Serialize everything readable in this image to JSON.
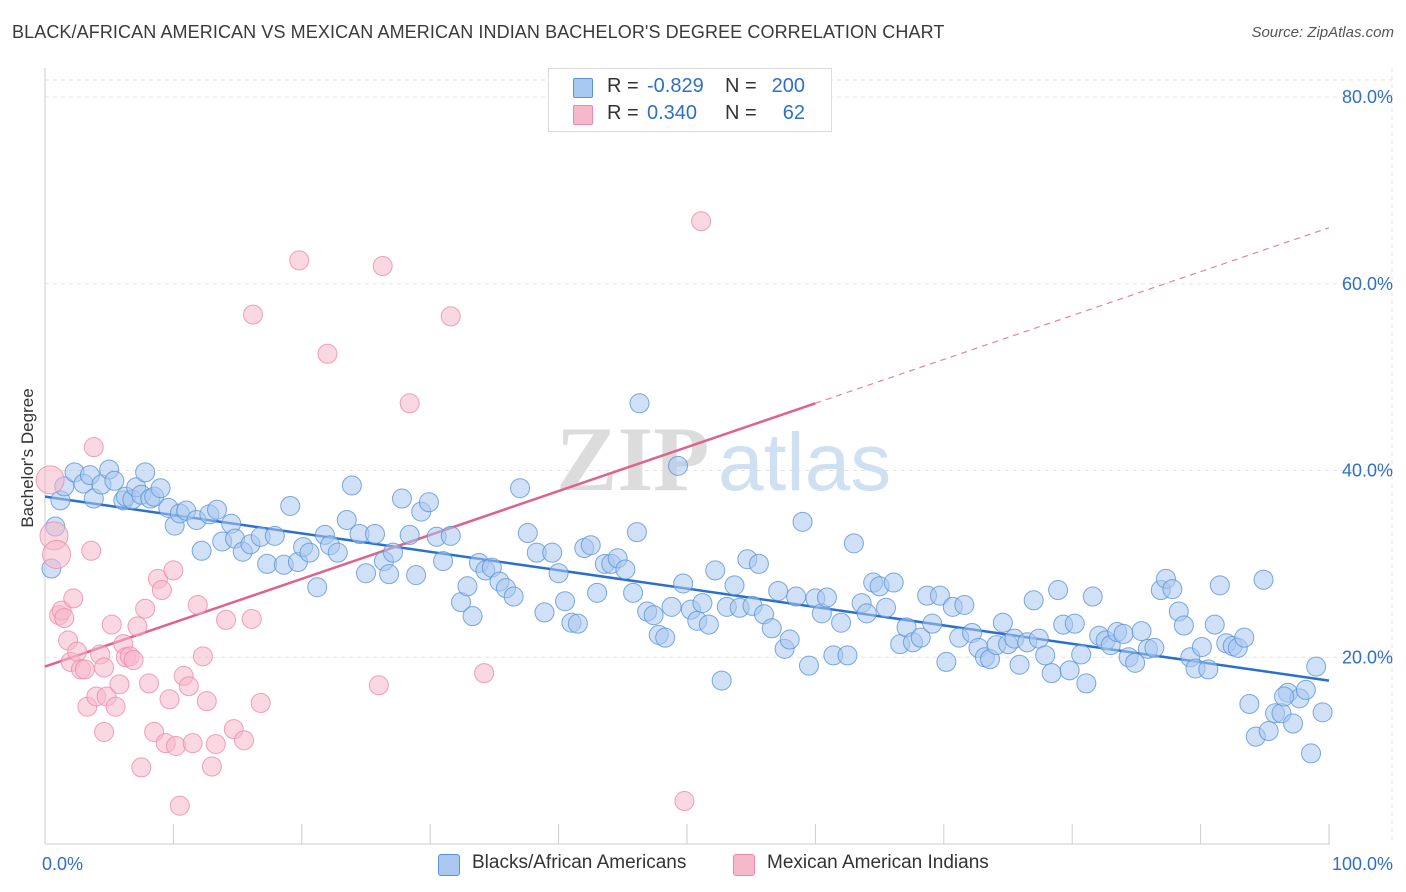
{
  "header": {
    "title": "BLACK/AFRICAN AMERICAN VS MEXICAN AMERICAN INDIAN BACHELOR'S DEGREE CORRELATION CHART",
    "source": "Source: ZipAtlas.com"
  },
  "legend_top": {
    "rows": [
      {
        "r_label": "R =",
        "r_value": "-0.829",
        "n_label": "N =",
        "n_value": "200",
        "color": "#a9c8f0"
      },
      {
        "r_label": "R =",
        "r_value": "0.340",
        "n_label": "N =",
        "n_value": "62",
        "color": "#f6b8cb"
      }
    ]
  },
  "legend_bottom": {
    "items": [
      {
        "label": "Blacks/African Americans",
        "color": "#a9c8f0"
      },
      {
        "label": "Mexican American Indians",
        "color": "#f6b8cb"
      }
    ]
  },
  "chart_data": {
    "type": "scatter",
    "title": "BLACK/AFRICAN AMERICAN VS MEXICAN AMERICAN INDIAN BACHELOR'S DEGREE CORRELATION CHART",
    "xlabel": "",
    "ylabel": "Bachelor's Degree",
    "xlim": [
      0,
      100
    ],
    "ylim": [
      0,
      85
    ],
    "x_tick_labels": [
      "0.0%",
      "100.0%"
    ],
    "y_ticks": [
      20,
      40,
      60,
      80
    ],
    "y_tick_labels": [
      "20.0%",
      "40.0%",
      "60.0%",
      "80.0%"
    ],
    "grid": true,
    "watermark": "ZIPatlas",
    "series": [
      {
        "name": "Blacks/African Americans",
        "color": "#5b93d8",
        "fill": "#a9c8f0",
        "trend": {
          "x0": 0,
          "y0": 37.2,
          "x1": 100,
          "y1": 17.5,
          "color": "#2a6fd0",
          "dashed_from": null
        },
        "points": [
          [
            0.5,
            29.5
          ],
          [
            0.8,
            34.0
          ],
          [
            1.2,
            36.8
          ],
          [
            1.5,
            38.3
          ],
          [
            2.3,
            39.8
          ],
          [
            3.0,
            38.6
          ],
          [
            3.5,
            39.5
          ],
          [
            3.8,
            37.0
          ],
          [
            4.4,
            38.5
          ],
          [
            5.0,
            40.1
          ],
          [
            5.4,
            38.9
          ],
          [
            6.1,
            36.8
          ],
          [
            6.3,
            37.2
          ],
          [
            6.8,
            36.9
          ],
          [
            7.1,
            38.2
          ],
          [
            7.5,
            37.4
          ],
          [
            7.8,
            39.8
          ],
          [
            8.2,
            37.0
          ],
          [
            8.5,
            37.2
          ],
          [
            9.0,
            38.1
          ],
          [
            9.6,
            36.0
          ],
          [
            10.1,
            34.1
          ],
          [
            10.5,
            35.4
          ],
          [
            11.0,
            35.7
          ],
          [
            11.8,
            34.7
          ],
          [
            12.2,
            31.4
          ],
          [
            12.8,
            35.3
          ],
          [
            13.4,
            35.8
          ],
          [
            13.8,
            32.4
          ],
          [
            14.5,
            34.3
          ],
          [
            14.8,
            32.7
          ],
          [
            15.4,
            31.3
          ],
          [
            16.0,
            32.1
          ],
          [
            16.8,
            32.9
          ],
          [
            17.3,
            30.0
          ],
          [
            17.9,
            33.0
          ],
          [
            18.6,
            29.9
          ],
          [
            19.1,
            36.2
          ],
          [
            19.7,
            30.2
          ],
          [
            20.1,
            31.8
          ],
          [
            20.6,
            31.2
          ],
          [
            21.2,
            27.5
          ],
          [
            21.8,
            33.1
          ],
          [
            22.2,
            32.0
          ],
          [
            22.8,
            31.2
          ],
          [
            23.5,
            34.7
          ],
          [
            23.9,
            38.4
          ],
          [
            24.5,
            33.2
          ],
          [
            25.0,
            29.0
          ],
          [
            25.7,
            33.2
          ],
          [
            26.4,
            30.3
          ],
          [
            26.8,
            28.9
          ],
          [
            27.1,
            31.2
          ],
          [
            27.8,
            37.0
          ],
          [
            28.4,
            33.1
          ],
          [
            28.9,
            28.8
          ],
          [
            29.3,
            35.6
          ],
          [
            29.9,
            36.6
          ],
          [
            30.5,
            32.9
          ],
          [
            31.0,
            30.3
          ],
          [
            31.6,
            33.0
          ],
          [
            32.4,
            25.9
          ],
          [
            32.9,
            27.6
          ],
          [
            33.3,
            24.4
          ],
          [
            33.8,
            30.1
          ],
          [
            34.3,
            29.3
          ],
          [
            34.8,
            29.6
          ],
          [
            35.4,
            28.1
          ],
          [
            35.9,
            27.4
          ],
          [
            36.5,
            26.5
          ],
          [
            37.0,
            38.1
          ],
          [
            37.6,
            33.3
          ],
          [
            38.3,
            31.2
          ],
          [
            38.9,
            24.8
          ],
          [
            39.5,
            31.2
          ],
          [
            40.0,
            29.0
          ],
          [
            40.5,
            26.0
          ],
          [
            41.0,
            23.7
          ],
          [
            41.5,
            23.6
          ],
          [
            42.0,
            31.7
          ],
          [
            42.5,
            32.0
          ],
          [
            43.0,
            26.9
          ],
          [
            43.6,
            30.0
          ],
          [
            44.1,
            30.0
          ],
          [
            44.6,
            30.6
          ],
          [
            45.2,
            29.4
          ],
          [
            45.8,
            26.9
          ],
          [
            46.1,
            33.4
          ],
          [
            46.3,
            47.2
          ],
          [
            46.9,
            24.9
          ],
          [
            47.4,
            24.5
          ],
          [
            47.8,
            22.4
          ],
          [
            48.3,
            22.1
          ],
          [
            48.8,
            25.4
          ],
          [
            49.3,
            40.5
          ],
          [
            49.7,
            27.9
          ],
          [
            50.3,
            25.1
          ],
          [
            50.8,
            23.9
          ],
          [
            51.2,
            25.8
          ],
          [
            51.7,
            23.5
          ],
          [
            52.2,
            29.3
          ],
          [
            52.7,
            17.5
          ],
          [
            53.1,
            25.4
          ],
          [
            53.7,
            27.7
          ],
          [
            54.1,
            25.3
          ],
          [
            54.7,
            30.5
          ],
          [
            55.1,
            25.5
          ],
          [
            55.6,
            30.0
          ],
          [
            56.0,
            24.6
          ],
          [
            56.6,
            23.1
          ],
          [
            57.1,
            27.1
          ],
          [
            57.6,
            20.9
          ],
          [
            58.0,
            21.9
          ],
          [
            58.5,
            26.5
          ],
          [
            59.0,
            34.5
          ],
          [
            59.5,
            19.1
          ],
          [
            60.0,
            26.3
          ],
          [
            60.5,
            24.7
          ],
          [
            60.9,
            26.4
          ],
          [
            61.4,
            20.2
          ],
          [
            62.0,
            23.7
          ],
          [
            62.5,
            20.2
          ],
          [
            63.0,
            32.2
          ],
          [
            63.6,
            25.8
          ],
          [
            64.0,
            24.7
          ],
          [
            64.5,
            28.0
          ],
          [
            65.0,
            27.6
          ],
          [
            65.5,
            25.3
          ],
          [
            66.1,
            28.0
          ],
          [
            66.6,
            21.4
          ],
          [
            67.1,
            23.2
          ],
          [
            67.6,
            21.6
          ],
          [
            68.2,
            22.1
          ],
          [
            68.7,
            26.6
          ],
          [
            69.1,
            23.6
          ],
          [
            69.7,
            26.6
          ],
          [
            70.2,
            19.5
          ],
          [
            70.7,
            25.4
          ],
          [
            71.2,
            22.1
          ],
          [
            71.6,
            25.6
          ],
          [
            72.2,
            22.6
          ],
          [
            72.7,
            21.0
          ],
          [
            73.2,
            20.0
          ],
          [
            73.6,
            19.8
          ],
          [
            74.1,
            21.3
          ],
          [
            74.6,
            23.7
          ],
          [
            75.0,
            21.4
          ],
          [
            75.5,
            22.0
          ],
          [
            75.9,
            19.2
          ],
          [
            76.5,
            21.6
          ],
          [
            77.0,
            26.1
          ],
          [
            77.4,
            22.0
          ],
          [
            77.9,
            20.2
          ],
          [
            78.4,
            18.3
          ],
          [
            78.9,
            27.2
          ],
          [
            79.3,
            23.5
          ],
          [
            79.8,
            18.6
          ],
          [
            80.2,
            23.6
          ],
          [
            80.7,
            20.3
          ],
          [
            81.1,
            17.2
          ],
          [
            81.6,
            26.5
          ],
          [
            82.1,
            22.3
          ],
          [
            82.6,
            21.8
          ],
          [
            83.0,
            21.3
          ],
          [
            83.5,
            22.7
          ],
          [
            84.0,
            22.5
          ],
          [
            84.4,
            20.0
          ],
          [
            84.9,
            19.4
          ],
          [
            85.4,
            22.8
          ],
          [
            85.9,
            20.9
          ],
          [
            86.4,
            21.0
          ],
          [
            86.9,
            27.2
          ],
          [
            87.3,
            28.4
          ],
          [
            87.8,
            27.3
          ],
          [
            88.3,
            24.9
          ],
          [
            88.7,
            23.4
          ],
          [
            89.2,
            20.0
          ],
          [
            89.6,
            18.8
          ],
          [
            90.1,
            21.1
          ],
          [
            90.6,
            18.7
          ],
          [
            91.1,
            23.5
          ],
          [
            91.5,
            27.7
          ],
          [
            92.0,
            21.5
          ],
          [
            92.5,
            21.2
          ],
          [
            92.9,
            21.0
          ],
          [
            93.4,
            22.1
          ],
          [
            93.8,
            15.0
          ],
          [
            94.3,
            11.5
          ],
          [
            94.9,
            28.3
          ],
          [
            95.3,
            12.1
          ],
          [
            95.8,
            14.0
          ],
          [
            96.3,
            14.0
          ],
          [
            96.8,
            16.2
          ],
          [
            97.2,
            12.9
          ],
          [
            97.7,
            15.6
          ],
          [
            98.2,
            16.5
          ],
          [
            98.6,
            9.7
          ],
          [
            99.0,
            19.0
          ],
          [
            99.5,
            14.1
          ],
          [
            96.5,
            15.8
          ]
        ]
      },
      {
        "name": "Mexican American Indians",
        "color": "#ee8aa8",
        "fill": "#f6b8cb",
        "trend": {
          "x0": 0,
          "y0": 19.0,
          "x1": 60,
          "y1": 47.2,
          "color": "#e0628c",
          "dash_to_x": 100,
          "dash_to_y": 66.0
        },
        "points": [
          [
            0.4,
            39.0
          ],
          [
            0.7,
            33.0
          ],
          [
            0.9,
            31.0
          ],
          [
            1.1,
            24.5
          ],
          [
            1.3,
            25.0
          ],
          [
            1.5,
            24.2
          ],
          [
            1.8,
            21.8
          ],
          [
            2.0,
            19.5
          ],
          [
            2.2,
            26.3
          ],
          [
            2.5,
            20.6
          ],
          [
            2.8,
            18.7
          ],
          [
            3.1,
            18.7
          ],
          [
            3.3,
            14.7
          ],
          [
            3.6,
            31.4
          ],
          [
            3.8,
            42.5
          ],
          [
            4.0,
            15.8
          ],
          [
            4.3,
            20.3
          ],
          [
            4.6,
            18.9
          ],
          [
            4.8,
            15.8
          ],
          [
            5.2,
            23.5
          ],
          [
            5.5,
            14.7
          ],
          [
            5.8,
            17.1
          ],
          [
            6.1,
            21.4
          ],
          [
            6.3,
            20.0
          ],
          [
            6.6,
            20.1
          ],
          [
            6.9,
            19.7
          ],
          [
            7.2,
            23.3
          ],
          [
            7.5,
            8.2
          ],
          [
            7.8,
            25.2
          ],
          [
            8.1,
            17.2
          ],
          [
            8.5,
            12.0
          ],
          [
            8.8,
            28.4
          ],
          [
            9.1,
            27.2
          ],
          [
            9.4,
            10.8
          ],
          [
            9.7,
            15.5
          ],
          [
            10.0,
            29.3
          ],
          [
            10.2,
            10.5
          ],
          [
            10.5,
            4.1
          ],
          [
            10.8,
            18.0
          ],
          [
            11.2,
            16.9
          ],
          [
            11.5,
            10.8
          ],
          [
            11.9,
            25.6
          ],
          [
            12.3,
            20.1
          ],
          [
            12.6,
            15.3
          ],
          [
            13.0,
            8.3
          ],
          [
            13.3,
            10.7
          ],
          [
            14.1,
            24.0
          ],
          [
            14.7,
            12.3
          ],
          [
            15.5,
            11.1
          ],
          [
            16.1,
            24.1
          ],
          [
            16.8,
            15.1
          ],
          [
            19.8,
            62.5
          ],
          [
            16.2,
            56.7
          ],
          [
            22.0,
            52.5
          ],
          [
            26.3,
            61.9
          ],
          [
            28.4,
            47.2
          ],
          [
            31.6,
            56.5
          ],
          [
            34.2,
            18.3
          ],
          [
            26.0,
            17.0
          ],
          [
            51.1,
            66.7
          ],
          [
            49.8,
            4.6
          ],
          [
            4.6,
            12.0
          ]
        ]
      }
    ]
  }
}
